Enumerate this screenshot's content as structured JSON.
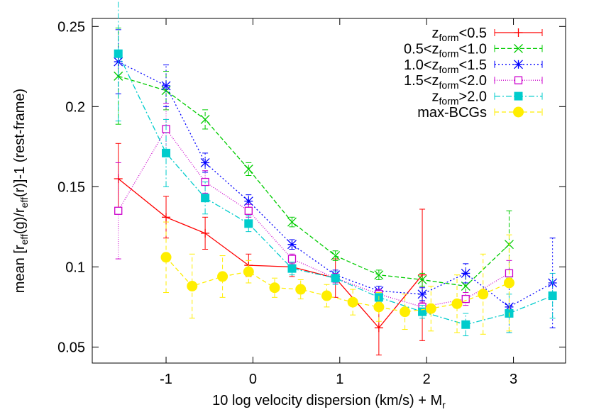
{
  "chart_data": {
    "type": "line",
    "xlabel": "10 log velocity dispersion (km/s) + M",
    "xlabel_sub": "r",
    "ylabel": "mean [r_eff(g)/r_eff(r)]-1 (rest-frame)",
    "ylabel_parts": [
      {
        "t": "mean [r",
        "s": false
      },
      {
        "t": "eff",
        "s": true
      },
      {
        "t": "(g)/r",
        "s": false
      },
      {
        "t": "eff",
        "s": true
      },
      {
        "t": "(r)]-1 (rest-frame)",
        "s": false
      }
    ],
    "xlim": [
      -1.85,
      3.6
    ],
    "ylim": [
      0.04,
      0.255
    ],
    "xticks": [
      -1,
      0,
      1,
      2,
      3
    ],
    "xtick_labels": [
      "-1",
      "0",
      "1",
      "2",
      "3"
    ],
    "yticks": [
      0.05,
      0.1,
      0.15,
      0.2,
      0.25
    ],
    "ytick_labels": [
      "0.05",
      "0.1",
      "0.15",
      "0.2",
      "0.25"
    ],
    "grid": false,
    "legend_position": "top-right",
    "series": [
      {
        "name": "z_form<0.5",
        "label_parts": [
          {
            "t": "z",
            "s": false
          },
          {
            "t": "form",
            "s": true
          },
          {
            "t": "<0.5",
            "s": false
          }
        ],
        "color": "#ff0000",
        "dash": "",
        "marker": "plus",
        "x": [
          -1.55,
          -1.0,
          -0.55,
          -0.05,
          0.45,
          0.95,
          1.45,
          1.95
        ],
        "y": [
          0.155,
          0.131,
          0.121,
          0.101,
          0.1,
          0.093,
          0.062,
          0.095
        ],
        "err": [
          0.022,
          0.013,
          0.01,
          0.007,
          0.006,
          0.012,
          0.017,
          0.041
        ]
      },
      {
        "name": "0.5<z_form<1.0",
        "label_parts": [
          {
            "t": "0.5<z",
            "s": false
          },
          {
            "t": "form",
            "s": true
          },
          {
            "t": "<1.0",
            "s": false
          }
        ],
        "color": "#00cc00",
        "dash": "6,3",
        "marker": "x",
        "x": [
          -1.55,
          -1.0,
          -0.55,
          -0.05,
          0.45,
          0.95,
          1.45,
          1.95,
          2.45,
          2.95
        ],
        "y": [
          0.219,
          0.21,
          0.192,
          0.161,
          0.128,
          0.107,
          0.095,
          0.092,
          0.088,
          0.114
        ],
        "err": [
          0.03,
          0.012,
          0.006,
          0.004,
          0.003,
          0.003,
          0.003,
          0.004,
          0.008,
          0.021
        ]
      },
      {
        "name": "1.0<z_form<1.5",
        "label_parts": [
          {
            "t": "1.0<z",
            "s": false
          },
          {
            "t": "form",
            "s": true
          },
          {
            "t": "<1.5",
            "s": false
          }
        ],
        "color": "#0000ff",
        "dash": "2,3",
        "marker": "star",
        "x": [
          -1.55,
          -1.0,
          -0.55,
          -0.05,
          0.45,
          0.95,
          1.45,
          1.95,
          2.45,
          2.95,
          3.45
        ],
        "y": [
          0.228,
          0.213,
          0.165,
          0.141,
          0.114,
          0.095,
          0.085,
          0.083,
          0.096,
          0.075,
          0.09
        ],
        "err": [
          0.02,
          0.013,
          0.006,
          0.004,
          0.003,
          0.003,
          0.003,
          0.004,
          0.006,
          0.016,
          0.028
        ]
      },
      {
        "name": "1.5<z_form<2.0",
        "label_parts": [
          {
            "t": "1.5<z",
            "s": false
          },
          {
            "t": "form",
            "s": true
          },
          {
            "t": "<2.0",
            "s": false
          }
        ],
        "color": "#cc00cc",
        "dash": "1,2",
        "marker": "open-square",
        "x": [
          -1.55,
          -1.0,
          -0.55,
          -0.05,
          0.45,
          0.95,
          1.45,
          1.95,
          2.45,
          2.95
        ],
        "y": [
          0.135,
          0.186,
          0.153,
          0.135,
          0.105,
          0.093,
          0.083,
          0.075,
          0.08,
          0.096
        ],
        "err": [
          0.03,
          0.016,
          0.007,
          0.004,
          0.003,
          0.003,
          0.003,
          0.003,
          0.004,
          0.008
        ]
      },
      {
        "name": "z_form>2.0",
        "label_parts": [
          {
            "t": "z",
            "s": false
          },
          {
            "t": "form",
            "s": true
          },
          {
            "t": ">2.0",
            "s": false
          }
        ],
        "color": "#00cccc",
        "dash": "8,3,2,3",
        "marker": "filled-square",
        "x": [
          -1.55,
          -1.0,
          -0.55,
          -0.05,
          0.45,
          0.95,
          1.45,
          1.95,
          2.45,
          2.95,
          3.45
        ],
        "y": [
          0.233,
          0.171,
          0.143,
          0.127,
          0.099,
          0.093,
          0.081,
          0.072,
          0.064,
          0.071,
          0.082
        ],
        "err": [
          0.042,
          0.021,
          0.01,
          0.005,
          0.004,
          0.004,
          0.003,
          0.004,
          0.007,
          0.012,
          0.014
        ]
      },
      {
        "name": "max-BCGs",
        "label_parts": [
          {
            "t": "max-BCGs",
            "s": false
          }
        ],
        "color": "#ffee00",
        "dash": "6,4",
        "marker": "filled-circle",
        "x": [
          -1.0,
          -0.7,
          -0.35,
          -0.05,
          0.25,
          0.55,
          0.85,
          1.15,
          1.45,
          1.75,
          2.05,
          2.35,
          2.65,
          2.95
        ],
        "y": [
          0.106,
          0.088,
          0.094,
          0.097,
          0.087,
          0.086,
          0.082,
          0.078,
          0.075,
          0.072,
          0.074,
          0.077,
          0.083,
          0.09
        ],
        "err": [
          0.022,
          0.02,
          0.013,
          0.007,
          0.006,
          0.006,
          0.007,
          0.008,
          0.009,
          0.011,
          0.014,
          0.018,
          0.025,
          0.03
        ]
      }
    ]
  }
}
